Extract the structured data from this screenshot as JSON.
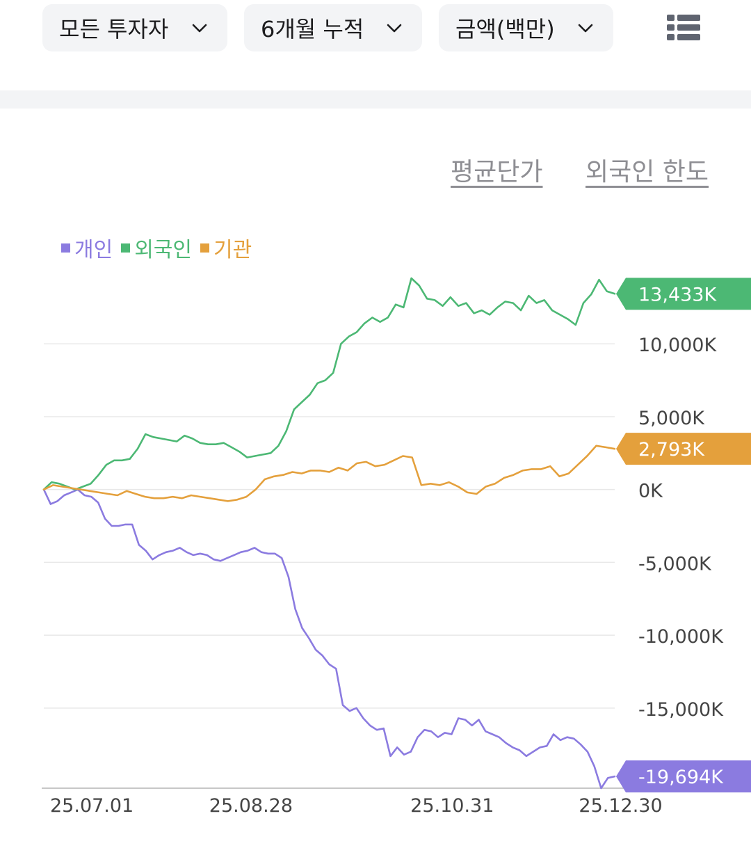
{
  "filters": {
    "investor": "모든 투자자",
    "period": "6개월 누적",
    "unit": "금액(백만)"
  },
  "links": {
    "avg_price": "평균단가",
    "foreign_limit": "외국인 한도"
  },
  "colors": {
    "individual": "#8b7be0",
    "foreign": "#4cb874",
    "institution": "#e4a03c",
    "grid": "#e8e8e8",
    "axis_text": "#444444"
  },
  "icons": {
    "dropdown": "chevron-down-icon",
    "view_toggle": "list-icon"
  },
  "chart_data": {
    "type": "line",
    "ylim": [
      -20500,
      14500
    ],
    "yticks": [
      10000,
      5000,
      0,
      -5000,
      -10000,
      -15000
    ],
    "ytick_labels": [
      "10,000K",
      "5,000K",
      "0K",
      "-5,000K",
      "-10,000K",
      "-15,000K"
    ],
    "xticks": [
      0,
      34,
      77,
      113
    ],
    "xtick_labels": [
      "25.07.01",
      "25.08.28",
      "25.10.31",
      "25.12.30"
    ],
    "legend": {
      "placement": "top-left",
      "entries": [
        "개인",
        "외국인",
        "기관"
      ]
    },
    "series": [
      {
        "name": "개인",
        "key": "individual",
        "last_label": "-19,694K",
        "values": [
          0,
          -1000,
          -800,
          -400,
          -200,
          0,
          -400,
          -500,
          -900,
          -2000,
          -2500,
          -2500,
          -2400,
          -2400,
          -3800,
          -4200,
          -4800,
          -4500,
          -4300,
          -4200,
          -4000,
          -4300,
          -4500,
          -4400,
          -4500,
          -4800,
          -4900,
          -4700,
          -4500,
          -4300,
          -4200,
          -4000,
          -4300,
          -4400,
          -4400,
          -4700,
          -6000,
          -8200,
          -9500,
          -10200,
          -11000,
          -11400,
          -12000,
          -12300,
          -14800,
          -15200,
          -15000,
          -15700,
          -16200,
          -16500,
          -16400,
          -18300,
          -17700,
          -18200,
          -18000,
          -17000,
          -16500,
          -16600,
          -17000,
          -16700,
          -16800,
          -15700,
          -15800,
          -16200,
          -15800,
          -16600,
          -16800,
          -17000,
          -17400,
          -17700,
          -17900,
          -18300,
          -18000,
          -17700,
          -17600,
          -16800,
          -17200,
          -17000,
          -17100,
          -17500,
          -18000,
          -19000,
          -20500,
          -19800,
          -19694
        ]
      },
      {
        "name": "외국인",
        "key": "foreign",
        "last_label": "13,433K",
        "values": [
          0,
          500,
          400,
          200,
          0,
          200,
          400,
          1000,
          1700,
          2000,
          2000,
          2100,
          2800,
          3800,
          3600,
          3500,
          3400,
          3300,
          3700,
          3500,
          3200,
          3100,
          3100,
          3200,
          2900,
          2600,
          2200,
          2300,
          2400,
          2500,
          3000,
          4000,
          5500,
          6000,
          6500,
          7300,
          7500,
          8000,
          10000,
          10500,
          10800,
          11400,
          11800,
          11500,
          11800,
          12700,
          12500,
          14500,
          14000,
          13100,
          13000,
          12600,
          13200,
          12600,
          12800,
          12100,
          12300,
          12000,
          12500,
          12900,
          12800,
          12300,
          13300,
          12800,
          13000,
          12300,
          12000,
          11700,
          11300,
          12800,
          13400,
          14400,
          13600,
          13433
        ]
      },
      {
        "name": "기관",
        "key": "institution",
        "last_label": "2,793K",
        "values": [
          0,
          300,
          200,
          100,
          0,
          -100,
          -200,
          -300,
          -400,
          -100,
          -300,
          -500,
          -600,
          -600,
          -500,
          -600,
          -400,
          -500,
          -600,
          -700,
          -800,
          -700,
          -500,
          0,
          700,
          900,
          1000,
          1200,
          1100,
          1300,
          1300,
          1200,
          1500,
          1300,
          1800,
          1900,
          1600,
          1700,
          2000,
          2300,
          2200,
          300,
          400,
          300,
          500,
          200,
          -200,
          -300,
          200,
          400,
          800,
          1000,
          1300,
          1400,
          1400,
          1600,
          900,
          1100,
          1700,
          2300,
          3000,
          2900,
          2793
        ]
      }
    ]
  }
}
